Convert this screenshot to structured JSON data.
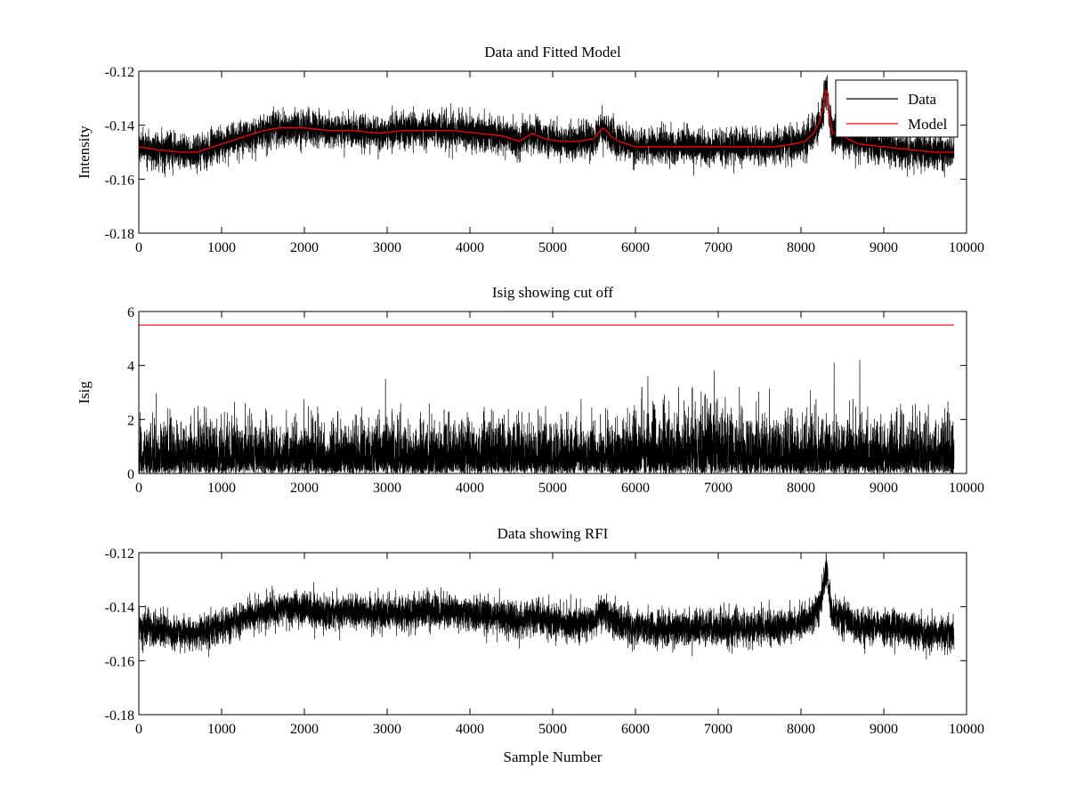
{
  "chart_data": [
    {
      "id": "top",
      "type": "line",
      "title": "Data and Fitted Model",
      "xlabel": "",
      "ylabel": "Intensity",
      "xlim": [
        0,
        10000
      ],
      "ylim": [
        -0.18,
        -0.12
      ],
      "xticks": [
        0,
        1000,
        2000,
        3000,
        4000,
        5000,
        6000,
        7000,
        8000,
        9000,
        10000
      ],
      "yticks": [
        -0.18,
        -0.16,
        -0.14,
        -0.12
      ],
      "ytick_labels": [
        "-0.18",
        "-0.16",
        "-0.14",
        "-0.12"
      ],
      "grid": false,
      "legend": {
        "placement": "top-right",
        "entries": [
          "Data",
          "Model"
        ]
      },
      "series": [
        {
          "name": "Data",
          "color": "#000000",
          "style": "noisy",
          "n_points": 9850,
          "noise_sd": 0.0031,
          "baseline": {
            "x": [
              0,
              200,
              500,
              700,
              900,
              1100,
              1300,
              1500,
              1700,
              2000,
              2300,
              2600,
              2900,
              3200,
              3500,
              3800,
              4100,
              4400,
              4600,
              4750,
              4900,
              5100,
              5300,
              5500,
              5600,
              5650,
              5700,
              5800,
              6000,
              6300,
              6600,
              7000,
              7400,
              7700,
              7900,
              8050,
              8150,
              8220,
              8270,
              8300,
              8320,
              8340,
              8380,
              8420,
              8500,
              8700,
              9000,
              9300,
              9600,
              9850
            ],
            "y": [
              -0.148,
              -0.149,
              -0.15,
              -0.15,
              -0.148,
              -0.146,
              -0.144,
              -0.142,
              -0.141,
              -0.141,
              -0.142,
              -0.142,
              -0.143,
              -0.142,
              -0.142,
              -0.142,
              -0.143,
              -0.144,
              -0.146,
              -0.143,
              -0.145,
              -0.146,
              -0.146,
              -0.145,
              -0.141,
              -0.142,
              -0.144,
              -0.146,
              -0.148,
              -0.148,
              -0.148,
              -0.148,
              -0.148,
              -0.148,
              -0.147,
              -0.146,
              -0.143,
              -0.139,
              -0.133,
              -0.127,
              -0.128,
              -0.136,
              -0.143,
              -0.143,
              -0.144,
              -0.147,
              -0.148,
              -0.149,
              -0.15,
              -0.15
            ]
          }
        },
        {
          "name": "Model",
          "color": "#ff0000",
          "style": "line",
          "x": [
            0,
            200,
            500,
            700,
            900,
            1100,
            1300,
            1500,
            1700,
            2000,
            2300,
            2600,
            2900,
            3200,
            3500,
            3800,
            4100,
            4400,
            4600,
            4750,
            4900,
            5100,
            5300,
            5500,
            5600,
            5650,
            5700,
            5800,
            6000,
            6300,
            6600,
            7000,
            7400,
            7700,
            7900,
            8050,
            8150,
            8220,
            8270,
            8300,
            8320,
            8340,
            8380,
            8420,
            8500,
            8700,
            9000,
            9300,
            9600,
            9850
          ],
          "y": [
            -0.148,
            -0.149,
            -0.15,
            -0.15,
            -0.148,
            -0.146,
            -0.144,
            -0.142,
            -0.141,
            -0.141,
            -0.142,
            -0.142,
            -0.143,
            -0.142,
            -0.142,
            -0.142,
            -0.143,
            -0.144,
            -0.146,
            -0.143,
            -0.145,
            -0.146,
            -0.146,
            -0.145,
            -0.141,
            -0.142,
            -0.144,
            -0.146,
            -0.148,
            -0.148,
            -0.148,
            -0.148,
            -0.148,
            -0.148,
            -0.147,
            -0.146,
            -0.143,
            -0.139,
            -0.133,
            -0.127,
            -0.128,
            -0.136,
            -0.143,
            -0.143,
            -0.144,
            -0.147,
            -0.148,
            -0.149,
            -0.15,
            -0.15
          ]
        }
      ]
    },
    {
      "id": "middle",
      "type": "line",
      "title": "Isig showing cut off",
      "xlabel": "",
      "ylabel": "Isig",
      "xlim": [
        0,
        10000
      ],
      "ylim": [
        0,
        6
      ],
      "xticks": [
        0,
        1000,
        2000,
        3000,
        4000,
        5000,
        6000,
        7000,
        8000,
        9000,
        10000
      ],
      "yticks": [
        0,
        2,
        4,
        6
      ],
      "ytick_labels": [
        "0",
        "2",
        "4",
        "6"
      ],
      "grid": false,
      "series": [
        {
          "color": "#000000",
          "style": "abs-noise",
          "n_points": 9850,
          "scale": {
            "x": [
              0,
              5800,
              6000,
              7200,
              7600,
              9850
            ],
            "y": [
              0.85,
              0.85,
              1.05,
              1.05,
              0.9,
              0.9
            ]
          },
          "peaks": [
            [
              0,
              4.0
            ],
            [
              2980,
              3.5
            ],
            [
              6150,
              3.6
            ],
            [
              6950,
              3.8
            ],
            [
              8400,
              4.1
            ],
            [
              8710,
              4.2
            ]
          ]
        },
        {
          "color": "#ff0000",
          "style": "line",
          "x": [
            0,
            9850
          ],
          "y": [
            5.5,
            5.5
          ]
        }
      ]
    },
    {
      "id": "bottom",
      "type": "line",
      "title": "Data showing RFI",
      "xlabel": "Sample Number",
      "ylabel": "",
      "xlim": [
        0,
        10000
      ],
      "ylim": [
        -0.18,
        -0.12
      ],
      "xticks": [
        0,
        1000,
        2000,
        3000,
        4000,
        5000,
        6000,
        7000,
        8000,
        9000,
        10000
      ],
      "yticks": [
        -0.18,
        -0.16,
        -0.14,
        -0.12
      ],
      "ytick_labels": [
        "-0.18",
        "-0.16",
        "-0.14",
        "-0.12"
      ],
      "grid": false,
      "series": [
        {
          "color": "#000000",
          "style": "noisy",
          "n_points": 9850,
          "noise_sd": 0.0031,
          "baseline": {
            "x": [
              0,
              200,
              500,
              700,
              900,
              1100,
              1300,
              1500,
              1700,
              2000,
              2300,
              2600,
              2900,
              3200,
              3500,
              3800,
              4100,
              4400,
              4600,
              4750,
              4900,
              5100,
              5300,
              5500,
              5600,
              5650,
              5700,
              5800,
              6000,
              6300,
              6600,
              7000,
              7400,
              7700,
              7900,
              8050,
              8150,
              8220,
              8270,
              8300,
              8320,
              8340,
              8380,
              8420,
              8500,
              8700,
              9000,
              9300,
              9600,
              9850
            ],
            "y": [
              -0.148,
              -0.149,
              -0.15,
              -0.15,
              -0.148,
              -0.146,
              -0.144,
              -0.142,
              -0.141,
              -0.141,
              -0.142,
              -0.142,
              -0.143,
              -0.142,
              -0.142,
              -0.142,
              -0.143,
              -0.144,
              -0.146,
              -0.143,
              -0.145,
              -0.146,
              -0.146,
              -0.145,
              -0.141,
              -0.142,
              -0.144,
              -0.146,
              -0.148,
              -0.148,
              -0.148,
              -0.148,
              -0.148,
              -0.148,
              -0.147,
              -0.146,
              -0.143,
              -0.139,
              -0.133,
              -0.127,
              -0.128,
              -0.136,
              -0.143,
              -0.143,
              -0.144,
              -0.147,
              -0.148,
              -0.149,
              -0.15,
              -0.15
            ]
          }
        }
      ]
    }
  ]
}
